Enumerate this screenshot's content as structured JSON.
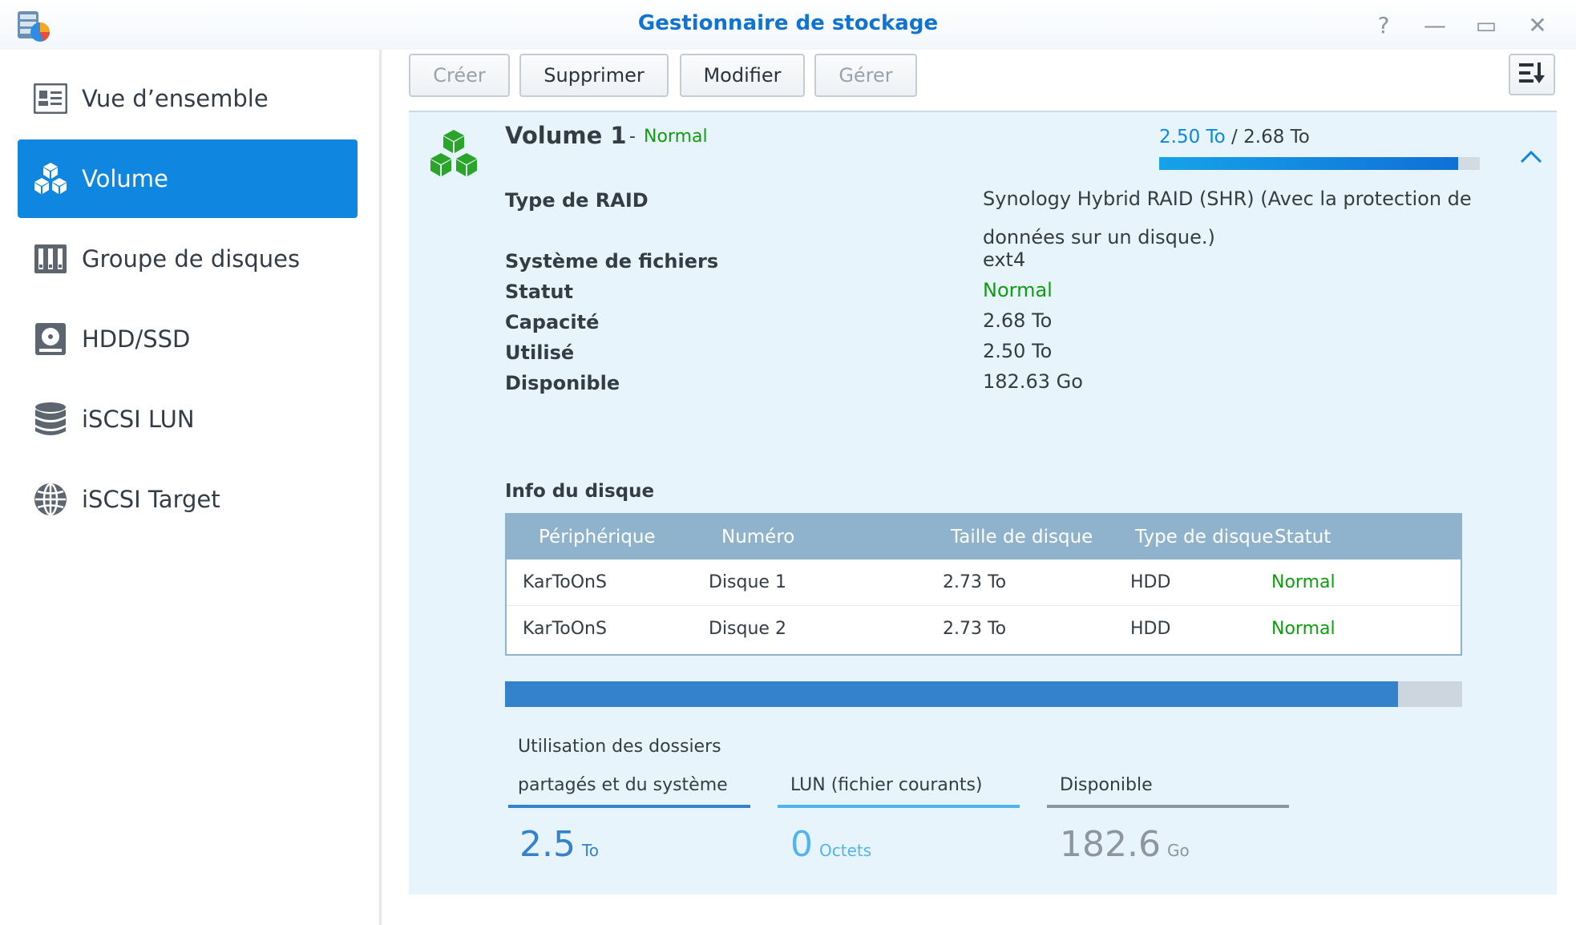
{
  "window": {
    "title": "Gestionnaire de stockage",
    "controls": {
      "help": "?",
      "minimize": "—",
      "maximize": "▭",
      "close": "✕"
    }
  },
  "sidebar": {
    "items": [
      {
        "label": "Vue d’ensemble",
        "icon": "overview-icon",
        "active": false
      },
      {
        "label": "Volume",
        "icon": "volume-cubes-icon",
        "active": true
      },
      {
        "label": "Groupe de disques",
        "icon": "disk-group-icon",
        "active": false
      },
      {
        "label": "HDD/SSD",
        "icon": "hdd-icon",
        "active": false
      },
      {
        "label": "iSCSI LUN",
        "icon": "database-icon",
        "active": false
      },
      {
        "label": "iSCSI Target",
        "icon": "globe-icon",
        "active": false
      }
    ]
  },
  "toolbar": {
    "create": "Créer",
    "delete": "Supprimer",
    "modify": "Modifier",
    "manage": "Gérer"
  },
  "volume": {
    "name": "Volume 1",
    "dash": "-",
    "status": "Normal",
    "used": "2.50 To",
    "separator": " / ",
    "total": "2.68 To",
    "used_fraction": 0.933,
    "properties": [
      {
        "label": "Type de RAID",
        "value": "Synology Hybrid RAID (SHR) (Avec la protection de données sur un disque.)"
      },
      {
        "label": "Système de fichiers",
        "value": "ext4"
      },
      {
        "label": "Statut",
        "value": "Normal"
      },
      {
        "label": "Capacité",
        "value": "2.68 To"
      },
      {
        "label": "Utilisé",
        "value": "2.50 To"
      },
      {
        "label": "Disponible",
        "value": "182.63 Go"
      }
    ]
  },
  "disk_info": {
    "title": "Info du disque",
    "headers": [
      "Périphérique",
      "Numéro",
      "Taille de disque",
      "Type de disque",
      "Statut"
    ],
    "rows": [
      [
        "KarToOnS",
        "Disque 1",
        "2.73 To",
        "HDD",
        "Normal"
      ],
      [
        "KarToOnS",
        "Disque 2",
        "2.73 To",
        "HDD",
        "Normal"
      ]
    ]
  },
  "folder_usage": {
    "used_fraction": 0.933,
    "legend": [
      {
        "label": "Utilisation des dossiers partagés et du système",
        "value": "2.5",
        "unit": "To",
        "color": "#3482cc"
      },
      {
        "label": "LUN (fichier courants)",
        "value": "0",
        "unit": "Octets",
        "color": "#52b4ec"
      },
      {
        "label": "Disponible",
        "value": "182.6",
        "unit": "Go",
        "color": "#8d959e"
      }
    ]
  },
  "colors": {
    "accent": "#0f86e0",
    "status_normal": "#109c10",
    "panel_bg": "#e8f4fc",
    "table_header": "#8fb3cc"
  }
}
